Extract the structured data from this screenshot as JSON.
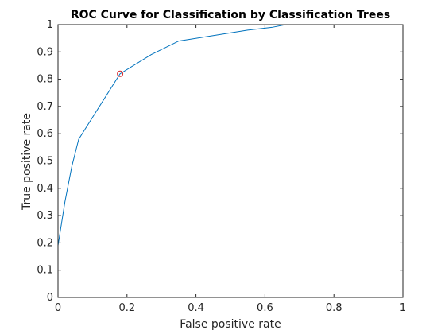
{
  "chart_data": {
    "type": "line",
    "title": "ROC Curve for Classification by Classification Trees",
    "xlabel": "False positive rate",
    "ylabel": "True positive rate",
    "xlim": [
      0,
      1
    ],
    "ylim": [
      0,
      1
    ],
    "x_ticks": [
      "0",
      "0.2",
      "0.4",
      "0.6",
      "0.8",
      "1"
    ],
    "y_ticks": [
      "0",
      "0.1",
      "0.2",
      "0.3",
      "0.4",
      "0.5",
      "0.6",
      "0.7",
      "0.8",
      "0.9",
      "1"
    ],
    "grid": false,
    "legend": "none",
    "series": [
      {
        "color": "#0072bd",
        "x": [
          0,
          0.0,
          0.02,
          0.04,
          0.06,
          0.08,
          0.18,
          0.27,
          0.35,
          0.45,
          0.55,
          0.62,
          0.66,
          0.75,
          0.85,
          1.0
        ],
        "y": [
          0,
          0.19,
          0.35,
          0.48,
          0.58,
          0.62,
          0.82,
          0.89,
          0.94,
          0.96,
          0.98,
          0.99,
          1.0,
          1.0,
          1.0,
          1.0
        ]
      }
    ],
    "marker": {
      "x": 0.18,
      "y": 0.82,
      "color": "#d62728",
      "shape": "circle"
    }
  }
}
